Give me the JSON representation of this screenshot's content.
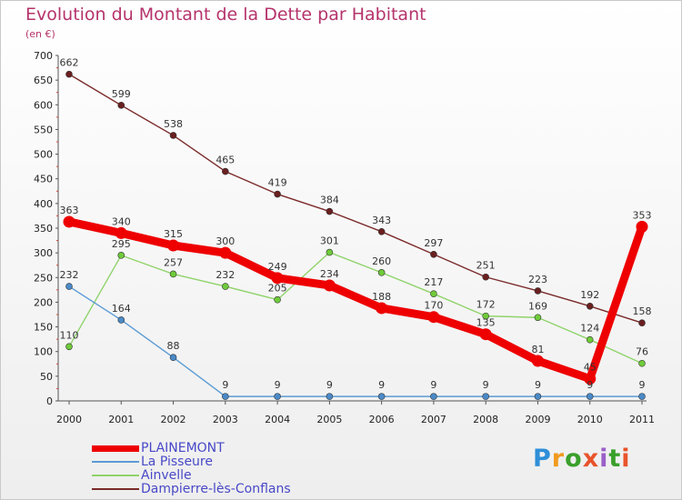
{
  "title": "Evolution du Montant de la Dette par Habitant",
  "subtitle": "(en €)",
  "brand": {
    "text": "Proxiti",
    "letters": [
      "P",
      "r",
      "o",
      "x",
      "i",
      "t",
      "i"
    ],
    "colors": [
      "#2e8fd8",
      "#f19a1e",
      "#3aa02b",
      "#e8532b",
      "#9a5fc8",
      "#3aa02b",
      "#e8532b"
    ]
  },
  "chart_data": {
    "type": "line",
    "title": "Evolution du Montant de la Dette par Habitant",
    "subtitle": "(en €)",
    "xlabel": "",
    "ylabel": "",
    "x": [
      "2000",
      "2001",
      "2002",
      "2003",
      "2004",
      "2005",
      "2006",
      "2007",
      "2008",
      "2009",
      "2010",
      "2011"
    ],
    "ylim": [
      0,
      700
    ],
    "yticks": [
      0,
      50,
      100,
      150,
      200,
      250,
      300,
      350,
      400,
      450,
      500,
      550,
      600,
      650,
      700
    ],
    "legend_position": "bottom-left",
    "grid": false,
    "series": [
      {
        "name": "Dampierre-lès-Conflans",
        "color": "#7b2a2a",
        "marker_color": "#6a1f1f",
        "values": [
          662,
          599,
          538,
          465,
          419,
          384,
          343,
          297,
          251,
          223,
          192,
          158
        ],
        "labels": [
          "662",
          "599",
          "538",
          "465",
          "419",
          "384",
          "343",
          "297",
          "251",
          "223",
          "192",
          "158"
        ]
      },
      {
        "name": "Ainvelle",
        "color": "#8fd36a",
        "marker_color": "#6fcb3a",
        "values": [
          110,
          295,
          257,
          232,
          205,
          301,
          260,
          217,
          172,
          169,
          124,
          76
        ],
        "labels": [
          "110",
          "295",
          "257",
          "232",
          "205",
          "301",
          "260",
          "217",
          "172",
          "169",
          "124",
          "76"
        ]
      },
      {
        "name": "La Pisseure",
        "color": "#5b9bd5",
        "marker_color": "#4a8ac8",
        "values": [
          232,
          164,
          88,
          9,
          9,
          9,
          9,
          9,
          9,
          9,
          9,
          9
        ],
        "labels": [
          "232",
          "164",
          "88",
          "9",
          "9",
          "9",
          "9",
          "9",
          "9",
          "9",
          "9",
          "9"
        ]
      },
      {
        "name": "PLAINEMONT",
        "color": "#ee0000",
        "marker_color": "#ee0000",
        "values": [
          363,
          340,
          315,
          300,
          249,
          234,
          188,
          170,
          135,
          81,
          45,
          353
        ],
        "labels": [
          "363",
          "340",
          "315",
          "300",
          "249",
          "234",
          "188",
          "170",
          "135",
          "81",
          "45",
          "353"
        ]
      }
    ],
    "legend": [
      "PLAINEMONT",
      "La Pisseure",
      "Ainvelle",
      "Dampierre-lès-Conflans"
    ]
  }
}
